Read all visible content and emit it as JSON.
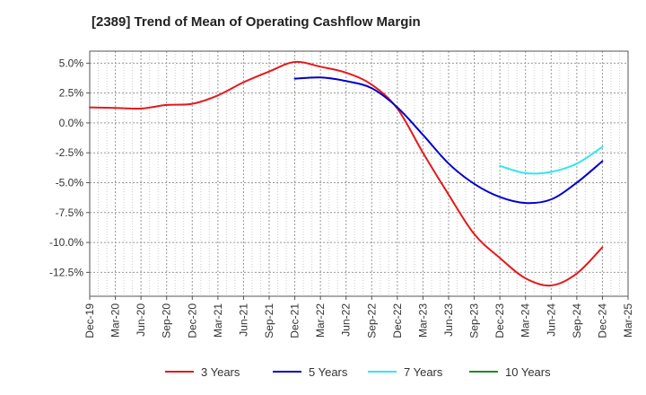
{
  "chart_data": {
    "type": "line",
    "title": "[2389]  Trend of Mean of Operating Cashflow Margin",
    "xlabel": "",
    "ylabel": "",
    "ylim": [
      -14.5,
      6.0
    ],
    "grid": true,
    "legend_position": "bottom",
    "y_ticks": [
      5.0,
      2.5,
      0.0,
      -2.5,
      -5.0,
      -7.5,
      -10.0,
      -12.5
    ],
    "y_tick_labels": [
      "5.0%",
      "2.5%",
      "0.0%",
      "-2.5%",
      "-5.0%",
      "-7.5%",
      "-10.0%",
      "-12.5%"
    ],
    "x_tick_labels": [
      "Dec-19",
      "Mar-20",
      "Jun-20",
      "Sep-20",
      "Dec-20",
      "Mar-21",
      "Jun-21",
      "Sep-21",
      "Dec-21",
      "Mar-22",
      "Jun-22",
      "Sep-22",
      "Dec-22",
      "Mar-23",
      "Jun-23",
      "Sep-23",
      "Dec-23",
      "Mar-24",
      "Jun-24",
      "Sep-24",
      "Dec-24",
      "Mar-25"
    ],
    "series": [
      {
        "name": "3 Years",
        "color": "#e41a1c",
        "values": [
          1.3,
          1.25,
          1.2,
          1.5,
          1.6,
          2.3,
          3.4,
          4.3,
          5.1,
          4.7,
          4.2,
          3.2,
          1.2,
          -2.5,
          -6.0,
          -9.3,
          -11.3,
          -13.0,
          -13.6,
          -12.6,
          -10.4
        ]
      },
      {
        "name": "5 Years",
        "color": "#0000cc",
        "values": [
          null,
          null,
          null,
          null,
          null,
          null,
          null,
          null,
          3.7,
          3.8,
          3.5,
          2.9,
          1.3,
          -1.0,
          -3.4,
          -5.1,
          -6.2,
          -6.7,
          -6.4,
          -5.0,
          -3.2
        ]
      },
      {
        "name": "7 Years",
        "color": "#33e6f0",
        "values": [
          null,
          null,
          null,
          null,
          null,
          null,
          null,
          null,
          null,
          null,
          null,
          null,
          null,
          null,
          null,
          null,
          -3.6,
          -4.2,
          -4.1,
          -3.4,
          -2.0
        ]
      },
      {
        "name": "10 Years",
        "color": "#228b22",
        "values": [
          null,
          null,
          null,
          null,
          null,
          null,
          null,
          null,
          null,
          null,
          null,
          null,
          null,
          null,
          null,
          null,
          null,
          null,
          null,
          null,
          null
        ]
      }
    ]
  }
}
